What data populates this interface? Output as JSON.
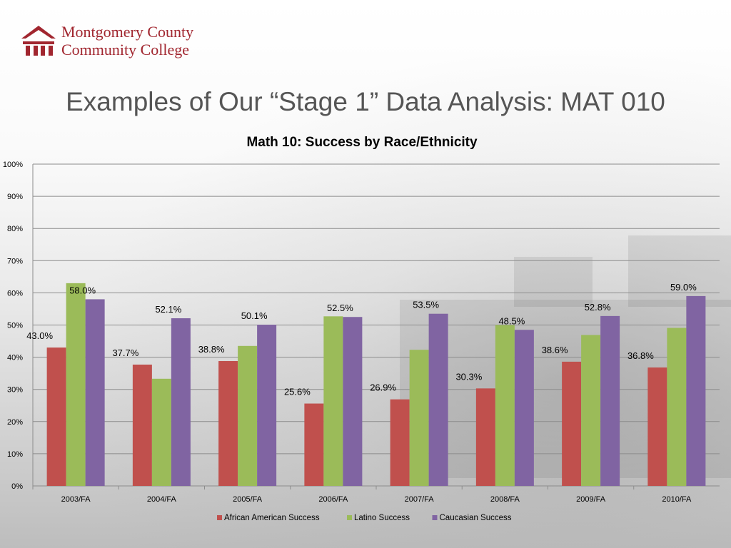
{
  "header": {
    "college_name_line1": "Montgomery County",
    "college_name_line2": "Community College",
    "brand_color": "#a1262f"
  },
  "slide": {
    "title": "Examples of Our “Stage 1” Data Analysis:  MAT 010"
  },
  "chart_data": {
    "type": "bar",
    "title": "Math 10: Success by Race/Ethnicity",
    "xlabel": "",
    "ylabel": "",
    "ylim": [
      0,
      100
    ],
    "y_ticks": [
      "0%",
      "10%",
      "20%",
      "30%",
      "40%",
      "50%",
      "60%",
      "70%",
      "80%",
      "90%",
      "100%"
    ],
    "grid": true,
    "legend_position": "bottom",
    "categories": [
      "2003/FA",
      "2004/FA",
      "2005/FA",
      "2006/FA",
      "2007/FA",
      "2008/FA",
      "2009/FA",
      "2010/FA"
    ],
    "series": [
      {
        "name": "African American Success",
        "color": "#c0504d",
        "values": [
          43.0,
          37.7,
          38.8,
          25.6,
          26.9,
          30.3,
          38.6,
          36.8
        ],
        "labels": [
          "43.0%",
          "37.7%",
          "38.8%",
          "25.6%",
          "26.9%",
          "30.3%",
          "38.6%",
          "36.8%"
        ]
      },
      {
        "name": "Latino Success",
        "color": "#9bbb59",
        "values": [
          63.0,
          33.3,
          43.5,
          52.7,
          42.3,
          50.0,
          46.9,
          49.1
        ],
        "labels": [
          "",
          "",
          "",
          "",
          "",
          "",
          "",
          ""
        ]
      },
      {
        "name": "Caucasian Success",
        "color": "#8064a2",
        "values": [
          58.0,
          52.1,
          50.1,
          52.5,
          53.5,
          48.5,
          52.8,
          59.0
        ],
        "labels": [
          "58.0%",
          "52.1%",
          "50.1%",
          "52.5%",
          "53.5%",
          "48.5%",
          "52.8%",
          "59.0%"
        ]
      }
    ]
  }
}
